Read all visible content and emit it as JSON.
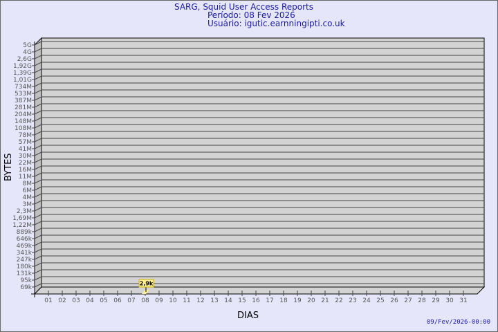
{
  "header": {
    "title": "SARG, Squid User Access Reports",
    "period": "Período: 08 Fev 2026",
    "user": "Usuário: igutic.earnningipti.co.uk"
  },
  "footer": {
    "timestamp": "09/Fev/2026-00:00"
  },
  "colors": {
    "background": "#e6e6fa",
    "plot": "#d3d3d3",
    "bar": "#ffee99",
    "text": "#1a1a9c"
  },
  "chart_data": {
    "type": "bar",
    "xlabel": "DIAS",
    "ylabel": "BYTES",
    "y_scale": "log",
    "grid": true,
    "y_tick_labels": [
      "5G",
      "4G",
      "2,6G",
      "1,92G",
      "1,39G",
      "1,01G",
      "734M",
      "533M",
      "387M",
      "281M",
      "204M",
      "148M",
      "108M",
      "78M",
      "57M",
      "41M",
      "30M",
      "22M",
      "16M",
      "11M",
      "8M",
      "6M",
      "4M",
      "3M",
      "2,3M",
      "1,69M",
      "1,22M",
      "889k",
      "646k",
      "469k",
      "341k",
      "247k",
      "180k",
      "131k",
      "95k",
      "69k"
    ],
    "categories": [
      "01",
      "02",
      "03",
      "04",
      "05",
      "06",
      "07",
      "08",
      "09",
      "10",
      "11",
      "12",
      "13",
      "14",
      "15",
      "16",
      "17",
      "18",
      "19",
      "20",
      "21",
      "22",
      "23",
      "24",
      "25",
      "26",
      "27",
      "28",
      "29",
      "30",
      "31"
    ],
    "values": [
      null,
      null,
      null,
      null,
      null,
      null,
      null,
      2900,
      null,
      null,
      null,
      null,
      null,
      null,
      null,
      null,
      null,
      null,
      null,
      null,
      null,
      null,
      null,
      null,
      null,
      null,
      null,
      null,
      null,
      null,
      null
    ],
    "data_labels": {
      "08": "2,9k"
    }
  }
}
